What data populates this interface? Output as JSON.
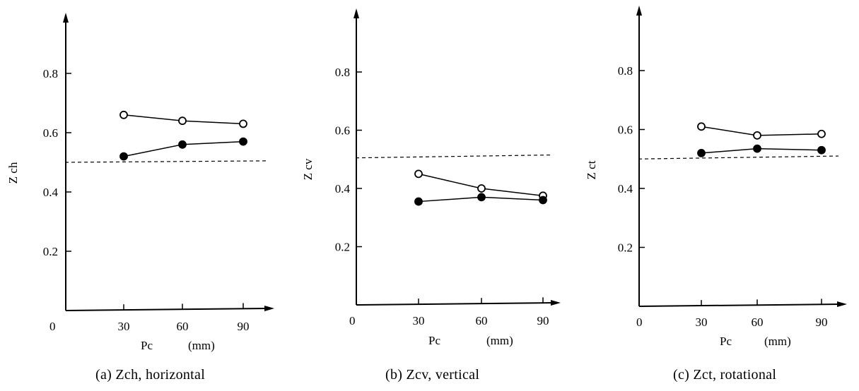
{
  "chart_data": [
    {
      "type": "line",
      "caption": "(a)  Zch, horizontal",
      "xlabel": "Pc",
      "xunit": "(mm)",
      "ylabel": "Z ch",
      "origin_label": "0",
      "x": [
        30,
        60,
        90
      ],
      "x_tick_labels": [
        "30",
        "60",
        "90"
      ],
      "y_ticks": [
        0.2,
        0.4,
        0.6,
        0.8
      ],
      "y_tick_labels": [
        "0.2",
        "0.4",
        "0.6",
        "0.8"
      ],
      "ylim": [
        0,
        1.0
      ],
      "reference_line": {
        "style": "dashed",
        "y_start": 0.5,
        "y_end": 0.505
      },
      "series": [
        {
          "marker": "open-circle",
          "values": [
            0.66,
            0.64,
            0.63
          ]
        },
        {
          "marker": "filled-circle",
          "values": [
            0.52,
            0.56,
            0.57
          ]
        }
      ]
    },
    {
      "type": "line",
      "caption": "(b)  Zcv, vertical",
      "xlabel": "Pc",
      "xunit": "(mm)",
      "ylabel": "Z cv",
      "origin_label": "0",
      "x": [
        30,
        60,
        90
      ],
      "x_tick_labels": [
        "30",
        "60",
        "90"
      ],
      "y_ticks": [
        0.2,
        0.4,
        0.6,
        0.8
      ],
      "y_tick_labels": [
        "0.2",
        "0.4",
        "0.6",
        "0.8"
      ],
      "ylim": [
        0,
        1.0
      ],
      "reference_line": {
        "style": "dashed",
        "y_start": 0.505,
        "y_end": 0.515
      },
      "series": [
        {
          "marker": "open-circle",
          "values": [
            0.45,
            0.4,
            0.375
          ]
        },
        {
          "marker": "filled-circle",
          "values": [
            0.355,
            0.37,
            0.36
          ]
        }
      ]
    },
    {
      "type": "line",
      "caption": "(c)  Zct, rotational",
      "xlabel": "Pc",
      "xunit": "(mm)",
      "ylabel": "Z ct",
      "origin_label": "0",
      "x": [
        30,
        60,
        90
      ],
      "x_tick_labels": [
        "30",
        "60",
        "90"
      ],
      "y_ticks": [
        0.2,
        0.4,
        0.6,
        0.8
      ],
      "y_tick_labels": [
        "0.2",
        "0.4",
        "0.6",
        "0.8"
      ],
      "ylim": [
        0,
        1.0
      ],
      "reference_line": {
        "style": "dashed",
        "y_start": 0.5,
        "y_end": 0.51
      },
      "series": [
        {
          "marker": "open-circle",
          "values": [
            0.61,
            0.58,
            0.585
          ]
        },
        {
          "marker": "filled-circle",
          "values": [
            0.52,
            0.535,
            0.53
          ]
        }
      ]
    }
  ]
}
